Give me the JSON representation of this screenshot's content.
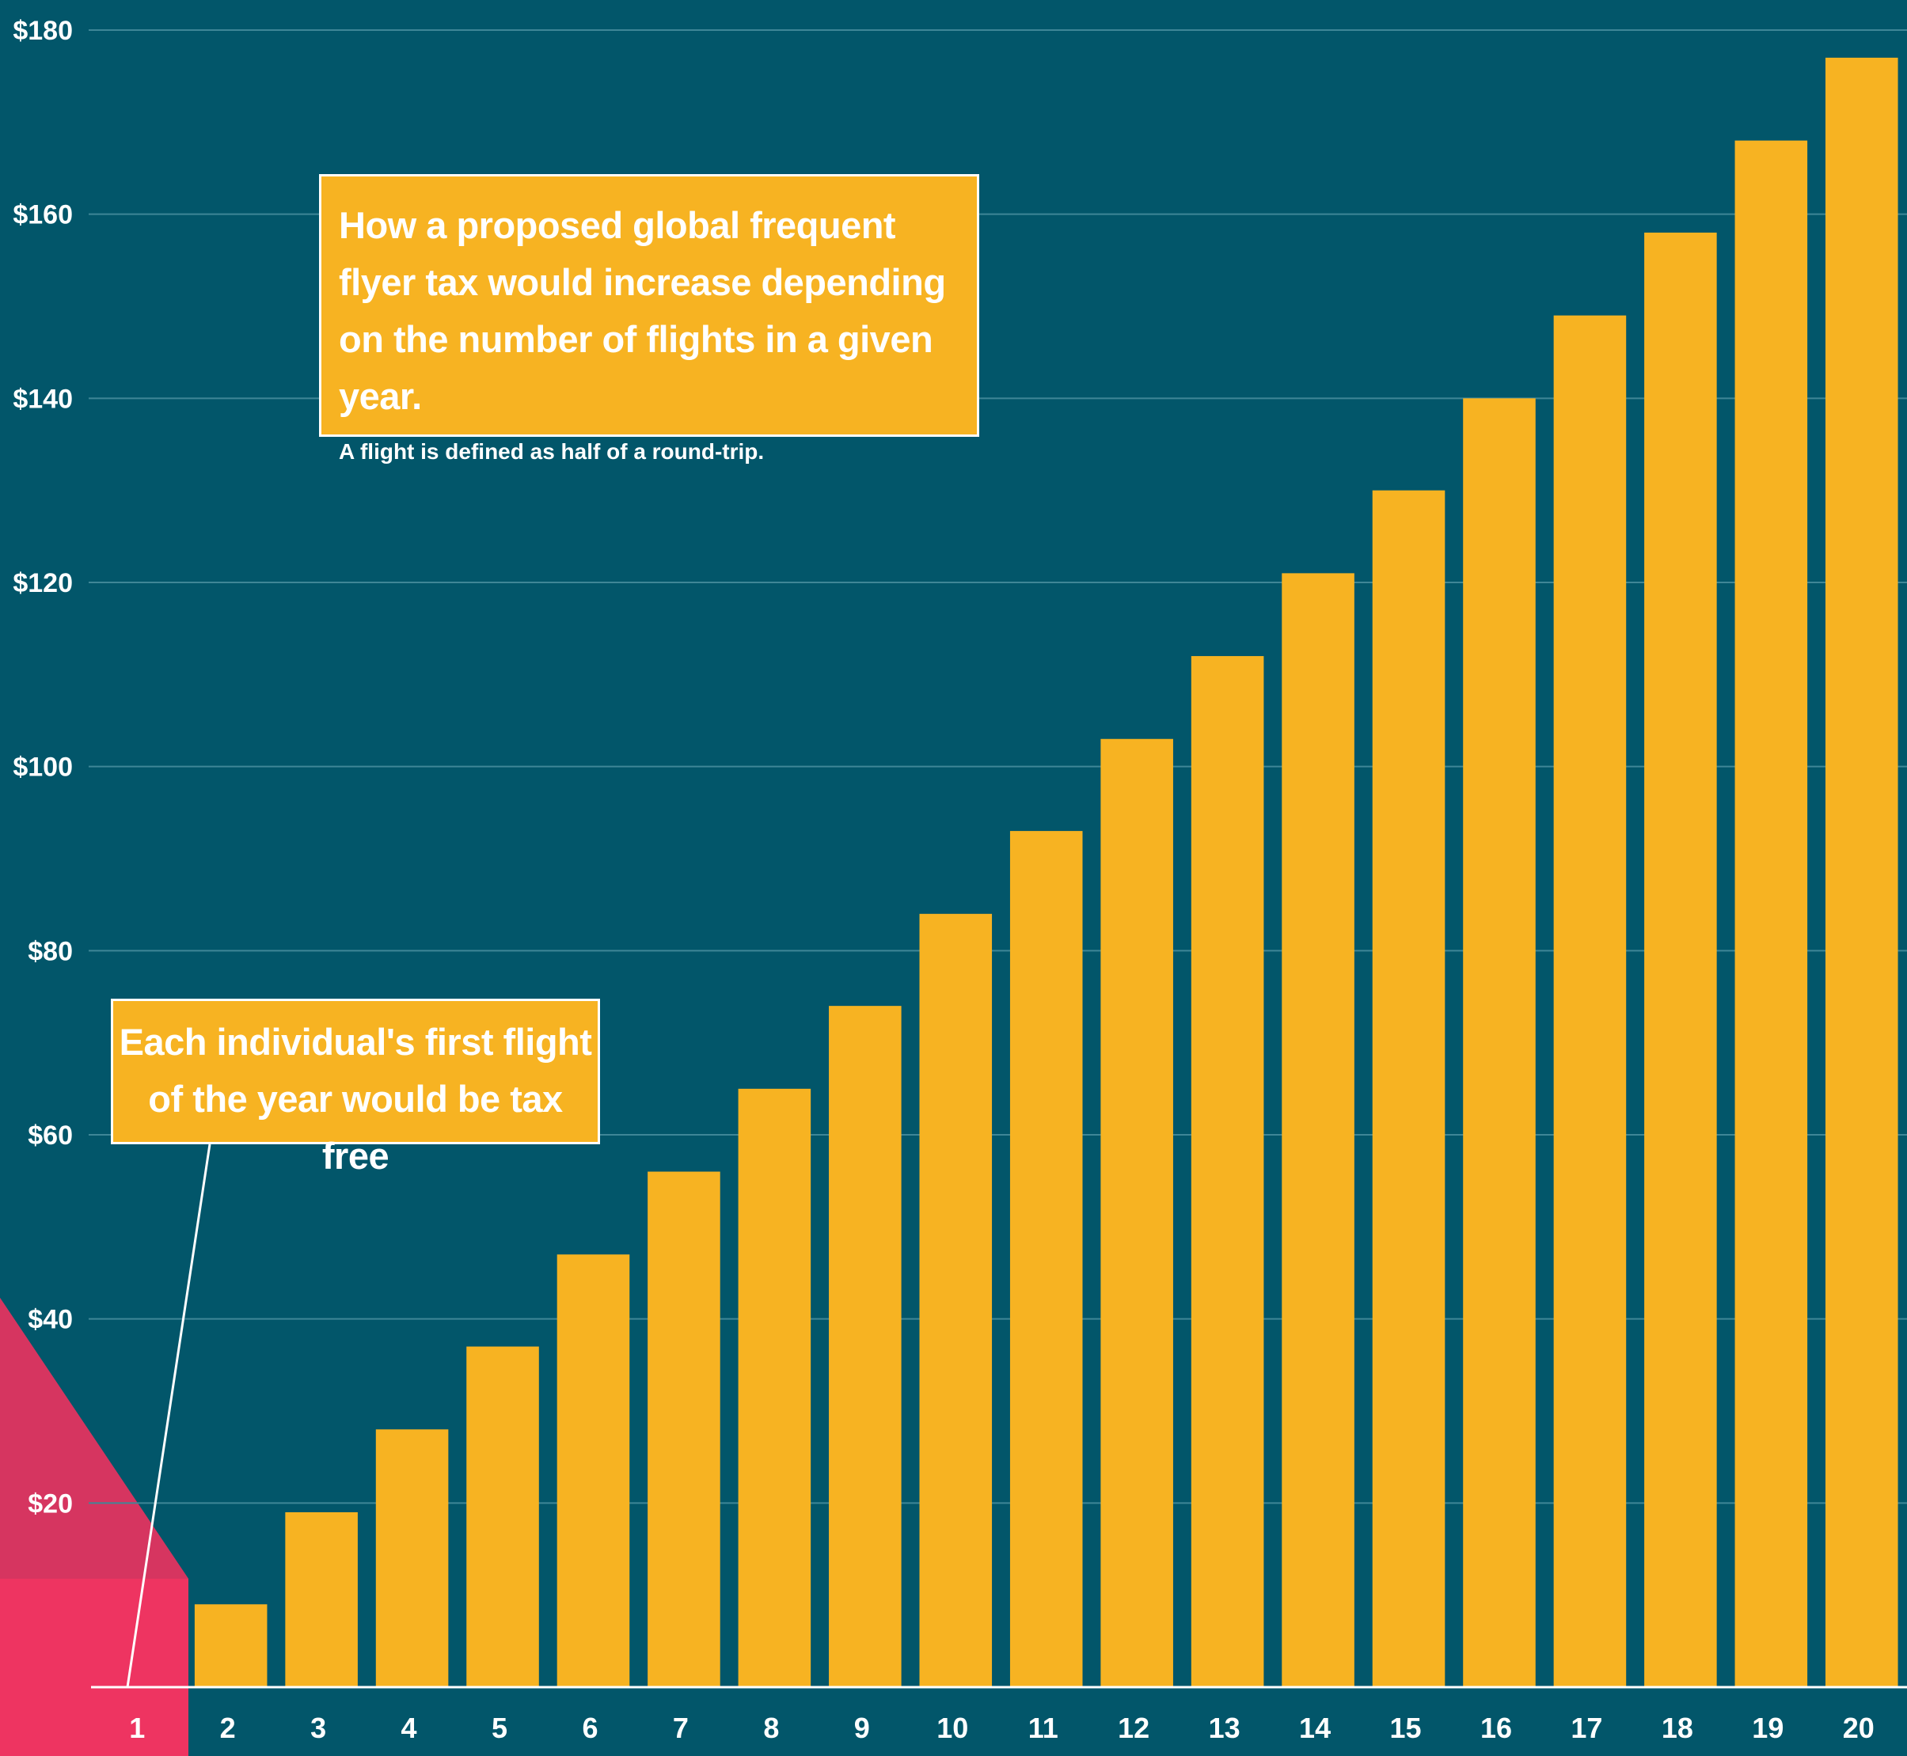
{
  "chart_data": {
    "type": "bar",
    "title": "How a proposed global frequent flyer tax would increase depending on the number of flights in a given year.",
    "title_lines": [
      "How a proposed global frequent",
      "flyer tax would increase depending",
      "on the number of flights in a given year."
    ],
    "subtitle": "A flight is defined as half of a round-trip.",
    "categories": [
      "1",
      "2",
      "3",
      "4",
      "5",
      "6",
      "7",
      "8",
      "9",
      "10",
      "11",
      "12",
      "13",
      "14",
      "15",
      "16",
      "17",
      "18",
      "19",
      "20"
    ],
    "values": [
      0,
      9,
      19,
      28,
      37,
      47,
      56,
      65,
      74,
      84,
      93,
      103,
      112,
      121,
      130,
      140,
      149,
      158,
      168,
      177
    ],
    "ylim": [
      0,
      180
    ],
    "yticks": [
      {
        "value": 20,
        "label": "$20"
      },
      {
        "value": 40,
        "label": "$40"
      },
      {
        "value": 60,
        "label": "$60"
      },
      {
        "value": 80,
        "label": "$80"
      },
      {
        "value": 100,
        "label": "$100"
      },
      {
        "value": 120,
        "label": "$120"
      },
      {
        "value": 140,
        "label": "$140"
      },
      {
        "value": 160,
        "label": "$160"
      },
      {
        "value": 180,
        "label": "$180"
      }
    ],
    "grid": true,
    "annotations": [
      {
        "text": "Each individual's first flight of the year would be tax free",
        "lines": [
          "Each individual's first flight",
          "of the year would be tax free"
        ],
        "target_category": "1"
      }
    ]
  },
  "colors": {
    "background": "#02566a",
    "bar": "#f7b322",
    "highlight": "#ee3461",
    "highlight_dark": "#d63560",
    "text": "#ffffff",
    "grid": "#3f8697"
  }
}
